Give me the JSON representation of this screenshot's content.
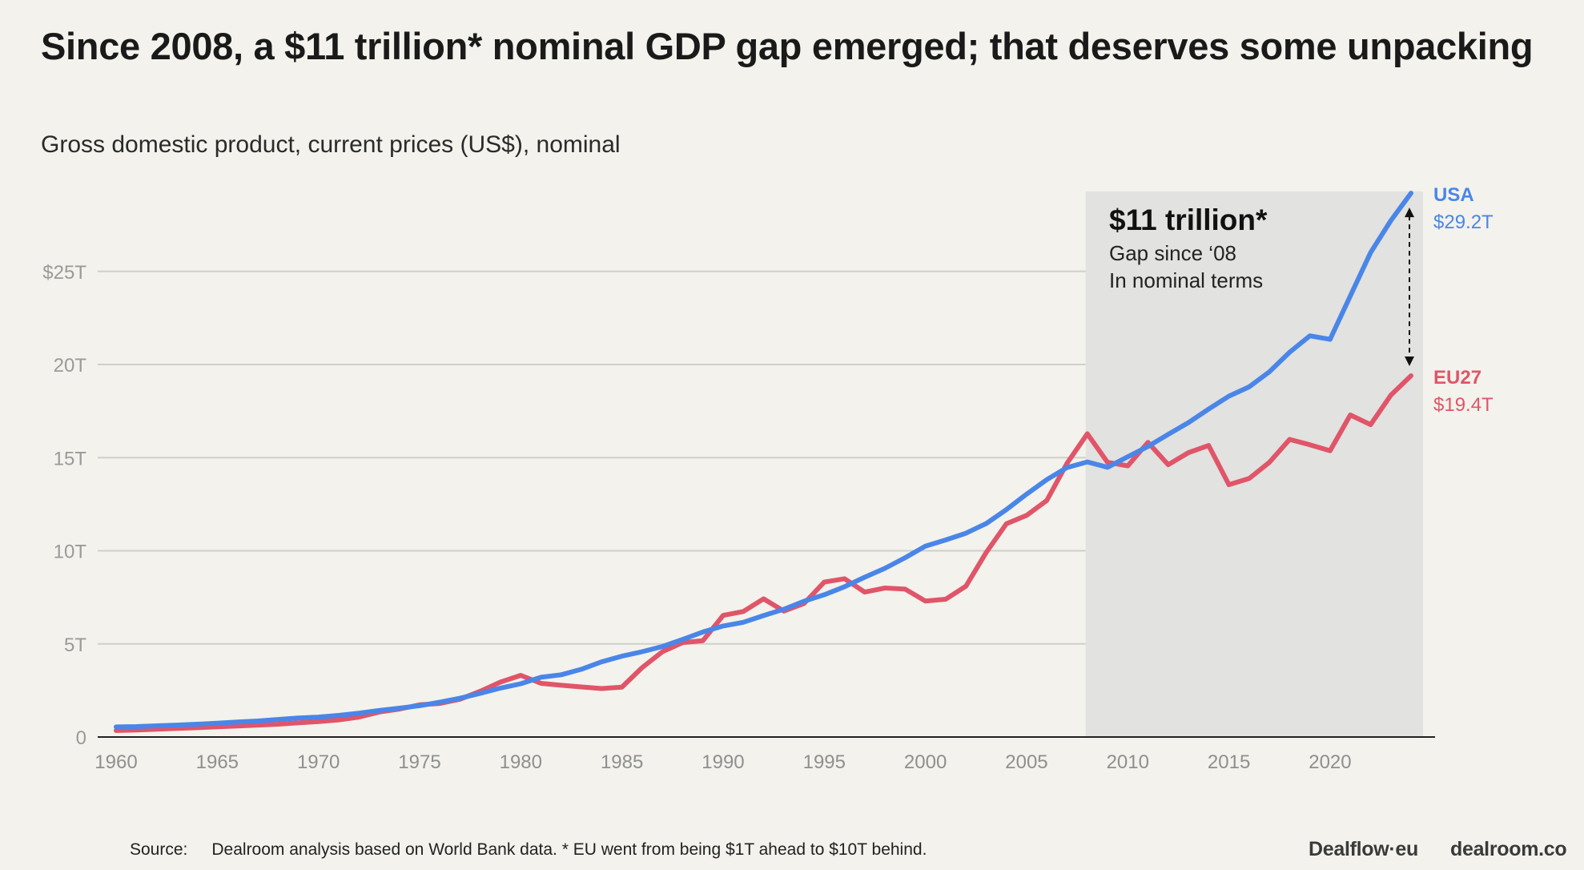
{
  "title": "Since 2008, a $11 trillion* nominal GDP gap emerged; that deserves some unpacking",
  "subtitle": "Gross domestic product, current prices (US$), nominal",
  "annotation": {
    "headline": "$11 trillion*",
    "line1": "Gap since ‘08",
    "line2": "In nominal terms"
  },
  "footer": {
    "source_label": "Source:",
    "source_text": "Dealroom analysis based on World Bank data. * EU went from being $1T  ahead to $10T behind.",
    "logo1": "Dealflow·eu",
    "logo2": "dealroom.co"
  },
  "colors": {
    "usa": "#4a86e8",
    "eu27": "#e05569",
    "highlight": "#e2e2e0",
    "background": "#f3f2ec"
  },
  "chart_data": {
    "type": "line",
    "title": "Since 2008, a $11 trillion* nominal GDP gap emerged; that deserves some unpacking",
    "subtitle": "Gross domestic product, current prices (US$), nominal",
    "xlabel": "",
    "ylabel": "",
    "xlim": [
      1960,
      2024
    ],
    "ylim": [
      0,
      29.2
    ],
    "x_ticks": [
      1960,
      1965,
      1970,
      1975,
      1980,
      1985,
      1990,
      1995,
      2000,
      2005,
      2010,
      2015,
      2020
    ],
    "y_ticks": [
      {
        "value": 0,
        "label": "0"
      },
      {
        "value": 5,
        "label": "5T"
      },
      {
        "value": 10,
        "label": "10T"
      },
      {
        "value": 15,
        "label": "15T"
      },
      {
        "value": 20,
        "label": "20T"
      },
      {
        "value": 25,
        "label": "$25T"
      }
    ],
    "grid": true,
    "highlight_range": [
      2008,
      2024
    ],
    "x": [
      1960,
      1961,
      1962,
      1963,
      1964,
      1965,
      1966,
      1967,
      1968,
      1969,
      1970,
      1971,
      1972,
      1973,
      1974,
      1975,
      1976,
      1977,
      1978,
      1979,
      1980,
      1981,
      1982,
      1983,
      1984,
      1985,
      1986,
      1987,
      1988,
      1989,
      1990,
      1991,
      1992,
      1993,
      1994,
      1995,
      1996,
      1997,
      1998,
      1999,
      2000,
      2001,
      2002,
      2003,
      2004,
      2005,
      2006,
      2007,
      2008,
      2009,
      2010,
      2011,
      2012,
      2013,
      2014,
      2015,
      2016,
      2017,
      2018,
      2019,
      2020,
      2021,
      2022,
      2023,
      2024
    ],
    "series": [
      {
        "name": "USA",
        "end_label": "$29.2T",
        "values": [
          0.54,
          0.56,
          0.6,
          0.64,
          0.69,
          0.74,
          0.81,
          0.86,
          0.94,
          1.02,
          1.07,
          1.16,
          1.28,
          1.43,
          1.55,
          1.68,
          1.87,
          2.08,
          2.35,
          2.63,
          2.86,
          3.21,
          3.34,
          3.64,
          4.04,
          4.34,
          4.58,
          4.86,
          5.24,
          5.64,
          5.96,
          6.16,
          6.52,
          6.86,
          7.29,
          7.64,
          8.07,
          8.58,
          9.06,
          9.63,
          10.25,
          10.58,
          10.94,
          11.46,
          12.21,
          13.04,
          13.82,
          14.47,
          14.77,
          14.48,
          15.05,
          15.6,
          16.25,
          16.88,
          17.61,
          18.3,
          18.8,
          19.61,
          20.66,
          21.54,
          21.35,
          23.68,
          26.01,
          27.72,
          29.2
        ]
      },
      {
        "name": "EU27",
        "end_label": "$19.4T",
        "values": [
          0.35,
          0.38,
          0.42,
          0.46,
          0.5,
          0.55,
          0.59,
          0.64,
          0.69,
          0.76,
          0.83,
          0.92,
          1.07,
          1.34,
          1.5,
          1.73,
          1.8,
          2.03,
          2.46,
          2.95,
          3.31,
          2.88,
          2.78,
          2.69,
          2.6,
          2.68,
          3.73,
          4.58,
          5.07,
          5.17,
          6.53,
          6.74,
          7.42,
          6.76,
          7.17,
          8.32,
          8.5,
          7.78,
          8.0,
          7.94,
          7.3,
          7.4,
          8.1,
          9.9,
          11.45,
          11.9,
          12.7,
          14.7,
          16.28,
          14.75,
          14.56,
          15.82,
          14.62,
          15.27,
          15.65,
          13.55,
          13.88,
          14.75,
          15.98,
          15.69,
          15.37,
          17.29,
          16.77,
          18.35,
          19.4
        ]
      }
    ]
  }
}
